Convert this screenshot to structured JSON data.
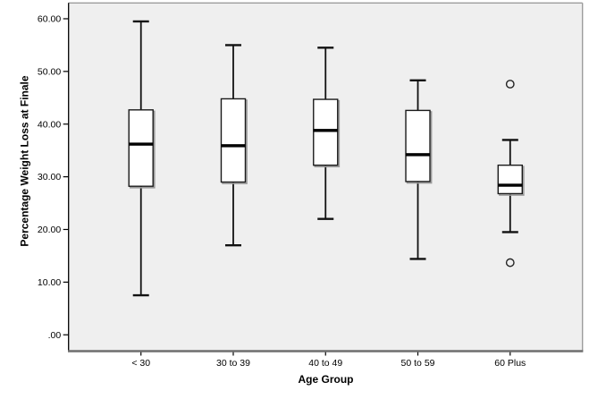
{
  "chart_data": {
    "type": "boxplot",
    "title": "",
    "xlabel": "Age Group",
    "ylabel": "Percentage Weight Loss at Finale",
    "categories": [
      "< 30",
      "30 to 39",
      "40 to 49",
      "50 to 59",
      "60 Plus"
    ],
    "y_axis": {
      "tick_values": [
        0,
        10,
        20,
        30,
        40,
        50,
        60
      ],
      "tick_labels": [
        ".00",
        "10.00",
        "20.00",
        "30.00",
        "40.00",
        "50.00",
        "60.00"
      ],
      "range": [
        -3.1,
        63.0
      ],
      "grid": false
    },
    "series": [
      {
        "category": "< 30",
        "whisker_low": 7.5,
        "q1": 28.2,
        "median": 36.2,
        "q3": 42.7,
        "whisker_high": 59.5,
        "outliers": []
      },
      {
        "category": "30 to 39",
        "whisker_low": 17.0,
        "q1": 29.0,
        "median": 35.9,
        "q3": 44.8,
        "whisker_high": 55.0,
        "outliers": []
      },
      {
        "category": "40 to 49",
        "whisker_low": 22.0,
        "q1": 32.2,
        "median": 38.8,
        "q3": 44.7,
        "whisker_high": 54.5,
        "outliers": []
      },
      {
        "category": "50 to 59",
        "whisker_low": 14.4,
        "q1": 29.1,
        "median": 34.2,
        "q3": 42.6,
        "whisker_high": 48.3,
        "outliers": []
      },
      {
        "category": "60 Plus",
        "whisker_low": 19.5,
        "q1": 26.8,
        "median": 28.4,
        "q3": 32.2,
        "whisker_high": 37.0,
        "outliers": [
          47.6,
          13.7
        ]
      }
    ],
    "legend": null,
    "colors": {
      "plot_background": "#efefef",
      "box_fill": "#ffffff",
      "box_border": "#1a1a1a",
      "box_shadow": "#9a9a9a",
      "median": "#000000",
      "whisker": "#111111",
      "outlier_stroke": "#222222",
      "frame_top_right": "#9c9c9c",
      "axis_bottom": "#6e6e6e",
      "axis_left": "#000000",
      "tick_text": "#000000"
    }
  }
}
